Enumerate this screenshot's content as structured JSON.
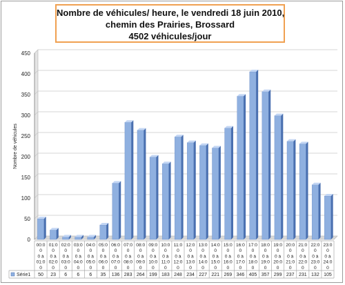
{
  "chart_data": {
    "type": "bar",
    "title_lines": [
      "Nombre de véhicules/ heure,  le vendredi 18 juin 2010,",
      "chemin des Prairies, Brossard",
      "4502 véhicules/jour"
    ],
    "ylabel": "Nombre de véhicules",
    "ylim": [
      0,
      450
    ],
    "yticks": [
      "0",
      "50",
      "100",
      "150",
      "200",
      "250",
      "300",
      "350",
      "400",
      "450"
    ],
    "grid": true,
    "categories": [
      [
        "00:0",
        "01:0",
        "0 à",
        "0"
      ],
      [
        "01:0",
        "02:0",
        "0 à",
        "0"
      ],
      [
        "02:0",
        "03:0",
        "0 à",
        "0"
      ],
      [
        "03:0",
        "04:0",
        "0 à",
        "0"
      ],
      [
        "04:0",
        "05:0",
        "0 à",
        "0"
      ],
      [
        "05:0",
        "06:0",
        "0 à",
        "0"
      ],
      [
        "06:0",
        "07:0",
        "0 à",
        "0"
      ],
      [
        "07:0",
        "08:0",
        "0 à",
        "0"
      ],
      [
        "08:0",
        "09:0",
        "0 à",
        "0"
      ],
      [
        "09:0",
        "10:0",
        "0 à",
        "0"
      ],
      [
        "10:0",
        "11:0",
        "0 à",
        "0"
      ],
      [
        "11:0",
        "12:0",
        "0 à",
        "0"
      ],
      [
        "12:0",
        "13:0",
        "0 à",
        "0"
      ],
      [
        "13:0",
        "14:0",
        "0 à",
        "0"
      ],
      [
        "14:0",
        "15:0",
        "0 à",
        "0"
      ],
      [
        "15:0",
        "16:0",
        "0 à",
        "0"
      ],
      [
        "16:0",
        "17:0",
        "0 à",
        "0"
      ],
      [
        "17:0",
        "18:0",
        "0 à",
        "0"
      ],
      [
        "18:0",
        "19:0",
        "0 à",
        "0"
      ],
      [
        "19:0",
        "20:0",
        "0 à",
        "0"
      ],
      [
        "20:0",
        "21:0",
        "0 à",
        "0"
      ],
      [
        "21:0",
        "22:0",
        "0 à",
        "0"
      ],
      [
        "22:0",
        "23:0",
        "0 à",
        "0"
      ],
      [
        "23:0",
        "24:0",
        "0 à",
        "0"
      ]
    ],
    "series": [
      {
        "name": "Série1",
        "values": [
          50,
          23,
          6,
          6,
          6,
          35,
          136,
          283,
          264,
          199,
          183,
          248,
          234,
          227,
          221,
          269,
          346,
          405,
          357,
          299,
          237,
          231,
          132,
          105
        ]
      }
    ],
    "colors": {
      "bar": "#8fb0e0",
      "bar_dark": "#4a70b0",
      "bar_top": "#c3d6f4",
      "grid": "#c8c8c8"
    }
  }
}
